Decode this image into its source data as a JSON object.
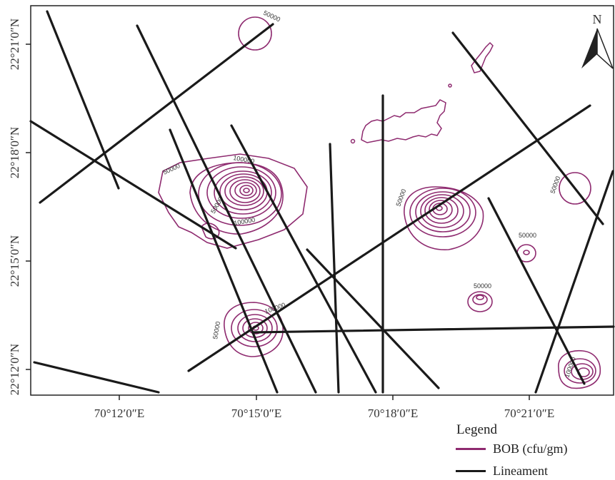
{
  "map": {
    "y_axis_labels": [
      "22°21′0″N",
      "22°18′0″N",
      "22°15′0″N",
      "22°12′0″N"
    ],
    "x_axis_labels": [
      "70°12′0″E",
      "70°15′0″E",
      "70°18′0″E",
      "70°21′0″E"
    ],
    "contour_labels": [
      "50000",
      "50000",
      "50000",
      "50000",
      "50000",
      "50000",
      "50000",
      "100000",
      "100000",
      "50000",
      "100000",
      "100000"
    ],
    "north_arrow_label": "N"
  },
  "legend": {
    "title": "Legend",
    "items": [
      {
        "label": "BOB (cfu/gm)",
        "color": "#8e2a6f"
      },
      {
        "label": "Lineament",
        "color": "#1a1a1a"
      }
    ]
  },
  "colors": {
    "contour": "#8e2a6f",
    "lineament": "#1a1a1a",
    "frame": "#222222"
  }
}
